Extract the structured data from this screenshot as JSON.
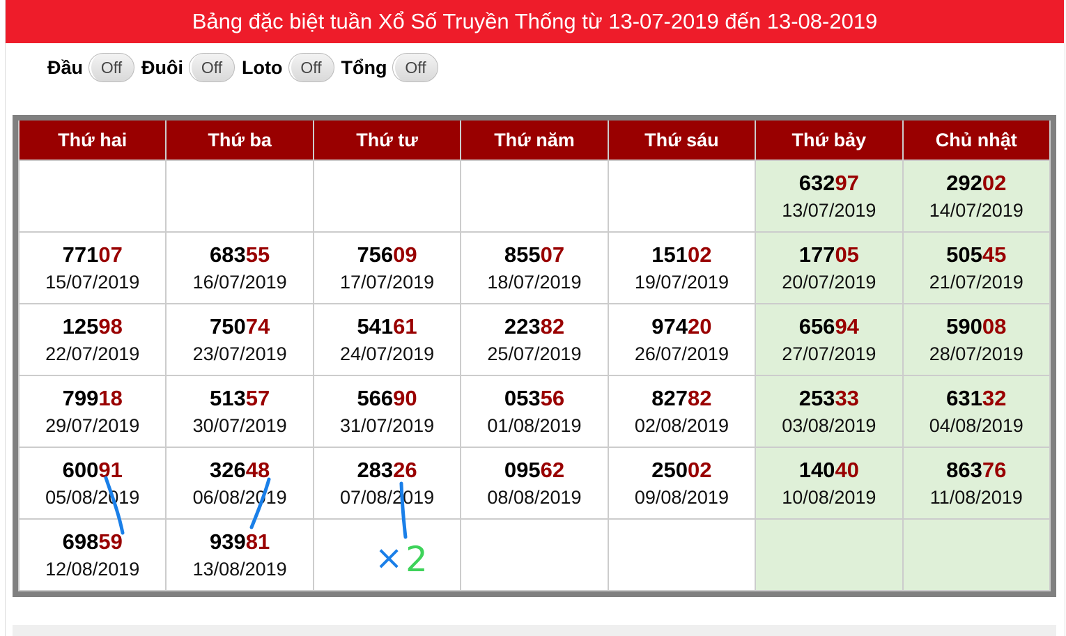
{
  "title": "Bảng đặc biệt tuần Xổ Số Truyền Thống từ 13-07-2019 đến 13-08-2019",
  "toggles": [
    {
      "label": "Đầu",
      "state": "Off"
    },
    {
      "label": "Đuôi",
      "state": "Off"
    },
    {
      "label": "Loto",
      "state": "Off"
    },
    {
      "label": "Tổng",
      "state": "Off"
    }
  ],
  "colors": {
    "title_bg": "#ee1c2a",
    "header_bg": "#990000",
    "tail_digits": "#990000",
    "weekend_bg": "#dff0d8",
    "annotation_blue": "#1a7fe8",
    "annotation_green": "#3ed35a"
  },
  "table": {
    "headers": [
      "Thứ hai",
      "Thứ ba",
      "Thứ tư",
      "Thứ năm",
      "Thứ sáu",
      "Thứ bảy",
      "Chủ nhật"
    ],
    "weeks": [
      [
        null,
        null,
        null,
        null,
        null,
        {
          "number": "63297",
          "date": "13/07/2019"
        },
        {
          "number": "29202",
          "date": "14/07/2019"
        }
      ],
      [
        {
          "number": "77107",
          "date": "15/07/2019"
        },
        {
          "number": "68355",
          "date": "16/07/2019"
        },
        {
          "number": "75609",
          "date": "17/07/2019"
        },
        {
          "number": "85507",
          "date": "18/07/2019"
        },
        {
          "number": "15102",
          "date": "19/07/2019"
        },
        {
          "number": "17705",
          "date": "20/07/2019"
        },
        {
          "number": "50545",
          "date": "21/07/2019"
        }
      ],
      [
        {
          "number": "12598",
          "date": "22/07/2019"
        },
        {
          "number": "75074",
          "date": "23/07/2019"
        },
        {
          "number": "54161",
          "date": "24/07/2019"
        },
        {
          "number": "22382",
          "date": "25/07/2019"
        },
        {
          "number": "97420",
          "date": "26/07/2019"
        },
        {
          "number": "65694",
          "date": "27/07/2019"
        },
        {
          "number": "59008",
          "date": "28/07/2019"
        }
      ],
      [
        {
          "number": "79918",
          "date": "29/07/2019"
        },
        {
          "number": "51357",
          "date": "30/07/2019"
        },
        {
          "number": "56690",
          "date": "31/07/2019"
        },
        {
          "number": "05356",
          "date": "01/08/2019"
        },
        {
          "number": "82782",
          "date": "02/08/2019"
        },
        {
          "number": "25333",
          "date": "03/08/2019"
        },
        {
          "number": "63132",
          "date": "04/08/2019"
        }
      ],
      [
        {
          "number": "60091",
          "date": "05/08/2019"
        },
        {
          "number": "32648",
          "date": "06/08/2019"
        },
        {
          "number": "28326",
          "date": "07/08/2019"
        },
        {
          "number": "09562",
          "date": "08/08/2019"
        },
        {
          "number": "25002",
          "date": "09/08/2019"
        },
        {
          "number": "14040",
          "date": "10/08/2019"
        },
        {
          "number": "86376",
          "date": "11/08/2019"
        }
      ],
      [
        {
          "number": "69859",
          "date": "12/08/2019"
        },
        {
          "number": "93981",
          "date": "13/08/2019"
        },
        null,
        null,
        null,
        null,
        null
      ]
    ]
  },
  "annotation": {
    "x": "×",
    "multiplier": "2"
  }
}
